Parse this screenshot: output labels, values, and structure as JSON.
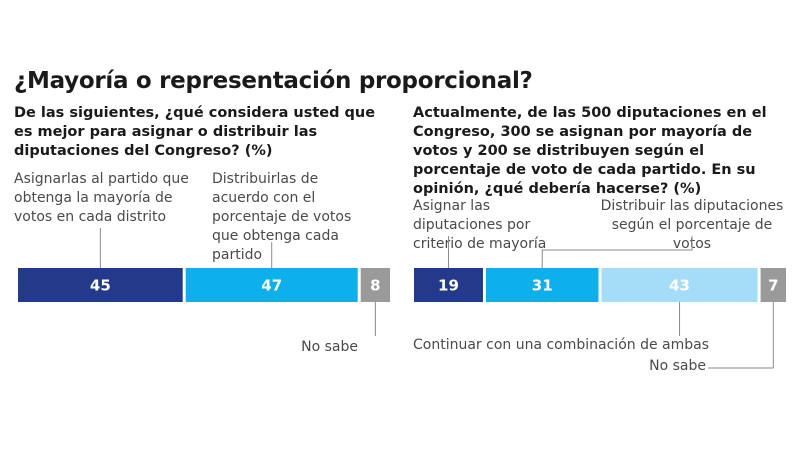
{
  "title": "¿Mayoría o representación proporcional?",
  "colors": {
    "dark_blue": "#233a8a",
    "mid_blue": "#0db0ea",
    "light_blue": "#a5dcf7",
    "gray": "#9a9a9a",
    "leader": "#8a8a8a"
  },
  "chart_data": [
    {
      "type": "bar",
      "stacked": true,
      "orientation": "horizontal",
      "title": "De las siguientes, ¿qué considera usted que es mejor para asignar o distribuir las diputaciones del Congreso? (%)",
      "categories": [
        "Asignarlas al partido que obtenga la mayoría de votos en cada distrito",
        "Distribuirlas de acuerdo con el porcentaje de votos que obtenga cada partido",
        "No sabe"
      ],
      "values": [
        45,
        47,
        8
      ],
      "value_labels": [
        "45",
        "47",
        "8"
      ],
      "xlim": [
        0,
        100
      ]
    },
    {
      "type": "bar",
      "stacked": true,
      "orientation": "horizontal",
      "title": "Actualmente, de las 500 diputaciones en el Congreso, 300 se asignan por mayoría de votos y 200 se distribuyen según el porcentaje de voto de cada partido. En su opinión, ¿qué debería hacerse? (%)",
      "categories": [
        "Asignar las diputaciones por criterio de mayoría",
        "Distribuir las diputaciones según el porcentaje de votos",
        "Continuar con una combinación de ambas",
        "No sabe"
      ],
      "values": [
        19,
        31,
        43,
        7
      ],
      "value_labels": [
        "19",
        "31",
        "43",
        "7"
      ],
      "xlim": [
        0,
        100
      ]
    }
  ],
  "left": {
    "question": "De las siguientes, ¿qué considera usted que es mejor para asignar o distribuir las diputaciones del Congreso? (%)",
    "label_majority": "Asignarlas al partido que obtenga la mayoría de votos en cada distrito",
    "label_proportional": "Distribuirlas de acuerdo con el porcentaje de votos que obtenga cada partido",
    "label_dontknow": "No sabe"
  },
  "right": {
    "question": "Actualmente, de las 500 diputaciones en el Congreso, 300 se asignan por mayoría de votos y 200 se distribuyen según el porcentaje de voto de cada partido. En su opinión, ¿qué debería hacerse? (%)",
    "label_majority": "Asignar las diputaciones por criterio de mayoría",
    "label_proportional": "Distribuir las diputaciones según el porcentaje de votos",
    "label_combination": "Continuar con una combinación de ambas",
    "label_dontknow": "No sabe"
  }
}
